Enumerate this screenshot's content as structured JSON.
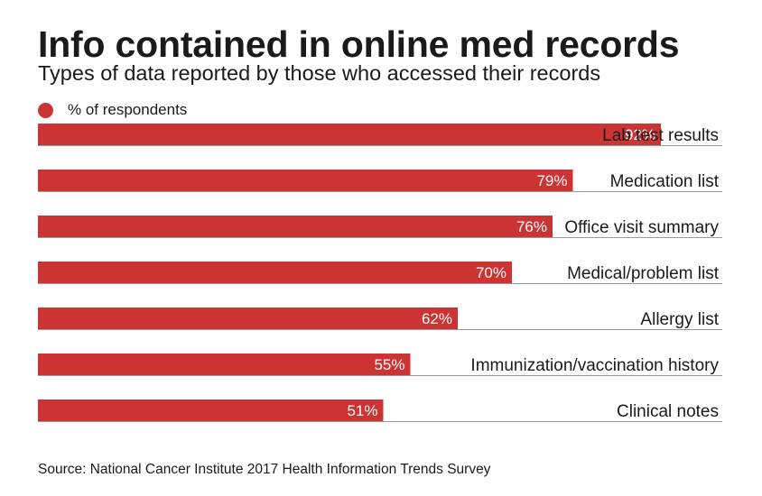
{
  "header": {
    "title": "Info contained in online med records",
    "subtitle": "Types of data reported by those who accessed their records"
  },
  "legend": {
    "label": "% of respondents",
    "color": "#cc3333"
  },
  "source": "Source: National Cancer Institute 2017 Health Information Trends Survey",
  "colors": {
    "bar": "#cc3333",
    "baseline": "#999999",
    "value_label": "#ffffff",
    "category_label": "#1a1a1a"
  },
  "chart_data": {
    "type": "bar",
    "orientation": "horizontal",
    "categories": [
      "Lab test results",
      "Medication list",
      "Office visit summary",
      "Medical/problem list",
      "Allergy list",
      "Immunization/vaccination history",
      "Clinical notes"
    ],
    "values": [
      92,
      79,
      76,
      70,
      62,
      55,
      51
    ],
    "value_labels": [
      "92%",
      "79%",
      "76%",
      "70%",
      "62%",
      "55%",
      "51%"
    ],
    "series": [
      {
        "name": "% of respondents",
        "values": [
          92,
          79,
          76,
          70,
          62,
          55,
          51
        ]
      }
    ],
    "xlim": [
      0,
      100
    ],
    "grid": false,
    "legend_position": "top-left"
  }
}
